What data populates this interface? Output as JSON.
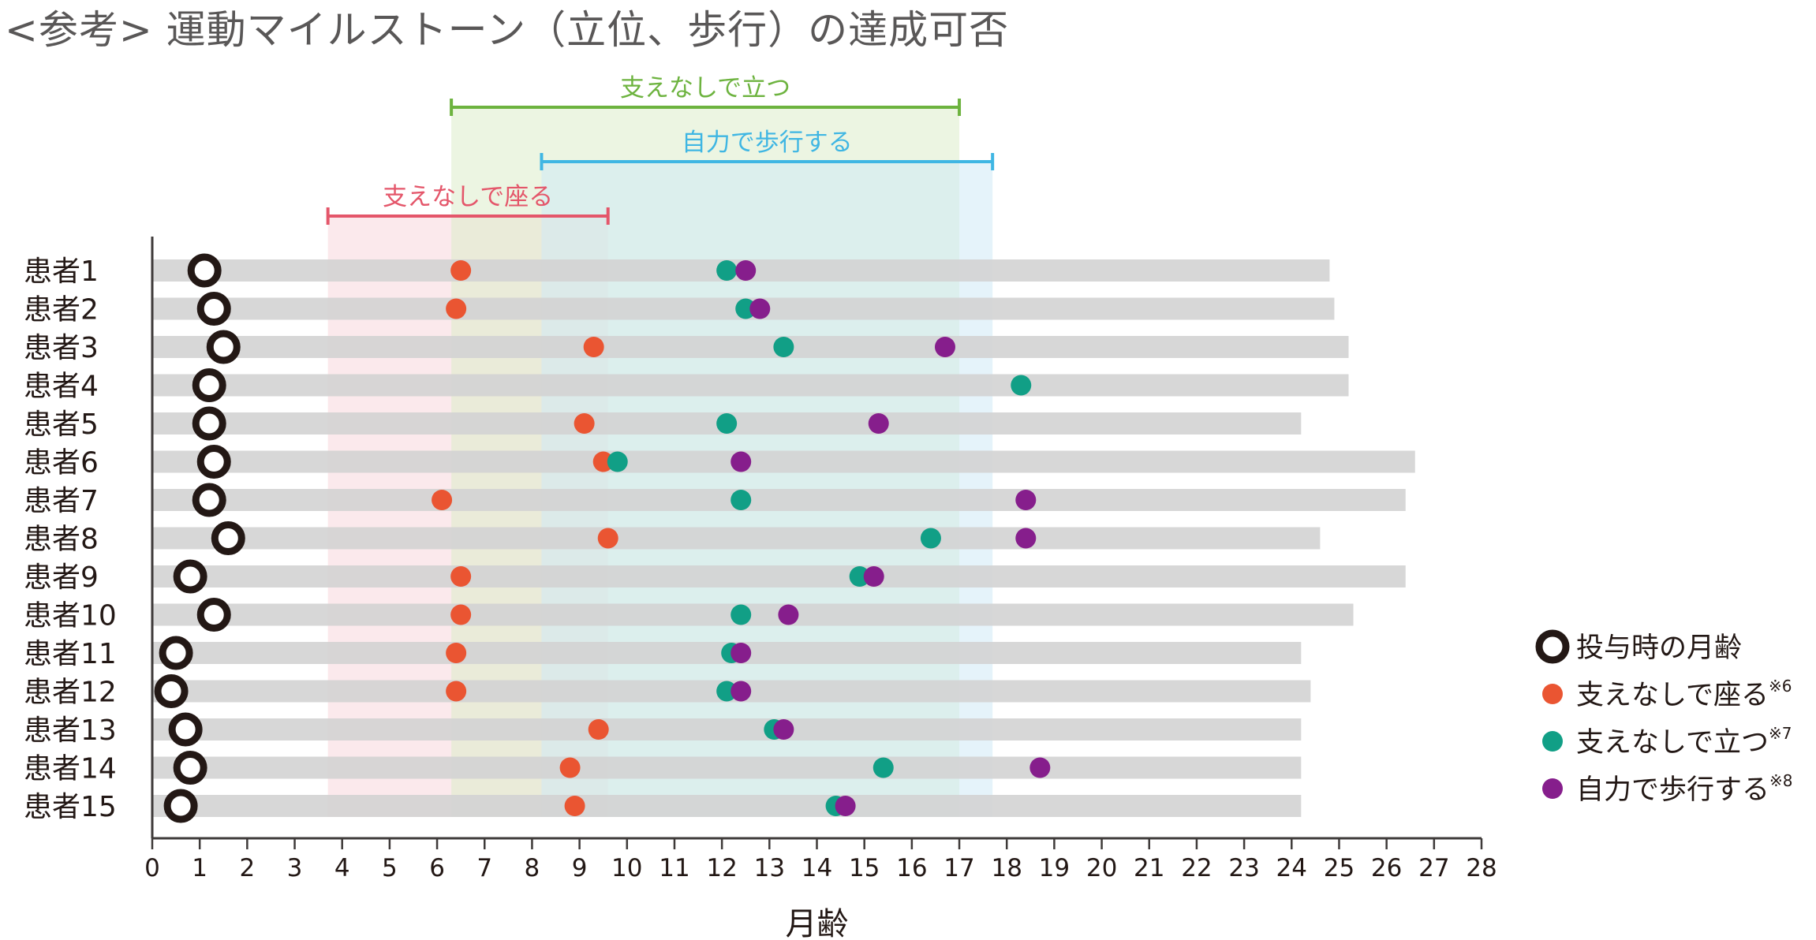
{
  "title": "<参考> 運動マイルストーン（立位、歩行）の達成可否",
  "chart_data": {
    "type": "scatter",
    "xlabel": "月齢",
    "xlim": [
      0,
      28
    ],
    "xticks": [
      0,
      1,
      2,
      3,
      4,
      5,
      6,
      7,
      8,
      9,
      10,
      11,
      12,
      13,
      14,
      15,
      16,
      17,
      18,
      19,
      20,
      21,
      22,
      23,
      24,
      25,
      26,
      27,
      28
    ],
    "patients": [
      {
        "label": "患者1",
        "end": 24.8,
        "dose": 1.1,
        "sit": 6.5,
        "stand": 12.1,
        "walk": 12.5
      },
      {
        "label": "患者2",
        "end": 24.9,
        "dose": 1.3,
        "sit": 6.4,
        "stand": 12.5,
        "walk": 12.8
      },
      {
        "label": "患者3",
        "end": 25.2,
        "dose": 1.5,
        "sit": 9.3,
        "stand": 13.3,
        "walk": 16.7
      },
      {
        "label": "患者4",
        "end": 25.2,
        "dose": 1.2,
        "sit": null,
        "stand": 18.3,
        "walk": null
      },
      {
        "label": "患者5",
        "end": 24.2,
        "dose": 1.2,
        "sit": 9.1,
        "stand": 12.1,
        "walk": 15.3
      },
      {
        "label": "患者6",
        "end": 26.6,
        "dose": 1.3,
        "sit": 9.5,
        "stand": 9.8,
        "walk": 12.4
      },
      {
        "label": "患者7",
        "end": 26.4,
        "dose": 1.2,
        "sit": 6.1,
        "stand": 12.4,
        "walk": 18.4
      },
      {
        "label": "患者8",
        "end": 24.6,
        "dose": 1.6,
        "sit": 9.6,
        "stand": 16.4,
        "walk": 18.4
      },
      {
        "label": "患者9",
        "end": 26.4,
        "dose": 0.8,
        "sit": 6.5,
        "stand": 14.9,
        "walk": 15.2
      },
      {
        "label": "患者10",
        "end": 25.3,
        "dose": 1.3,
        "sit": 6.5,
        "stand": 12.4,
        "walk": 13.4
      },
      {
        "label": "患者11",
        "end": 24.2,
        "dose": 0.5,
        "sit": 6.4,
        "stand": 12.2,
        "walk": 12.4
      },
      {
        "label": "患者12",
        "end": 24.4,
        "dose": 0.4,
        "sit": 6.4,
        "stand": 12.1,
        "walk": 12.4
      },
      {
        "label": "患者13",
        "end": 24.2,
        "dose": 0.7,
        "sit": 9.4,
        "stand": 13.1,
        "walk": 13.3
      },
      {
        "label": "患者14",
        "end": 24.2,
        "dose": 0.8,
        "sit": 8.8,
        "stand": 15.4,
        "walk": 18.7
      },
      {
        "label": "患者15",
        "end": 24.2,
        "dose": 0.6,
        "sit": 8.9,
        "stand": 14.4,
        "walk": 14.6
      }
    ],
    "ranges": [
      {
        "label": "支えなしで座る",
        "from": 3.7,
        "to": 9.6,
        "color": "#e4566a",
        "fill": "#f8d7dc"
      },
      {
        "label": "支えなしで立つ",
        "from": 6.3,
        "to": 17.0,
        "color": "#6db33f",
        "fill": "#dcedcb"
      },
      {
        "label": "自力で歩行する",
        "from": 8.2,
        "to": 17.7,
        "color": "#3fb6e3",
        "fill": "#cfeaf5"
      }
    ],
    "legend": [
      {
        "key": "dose",
        "label": "投与時の月齢"
      },
      {
        "key": "sit",
        "label": "支えなしで座る",
        "note": "※6"
      },
      {
        "key": "stand",
        "label": "支えなしで立つ",
        "note": "※7"
      },
      {
        "key": "walk",
        "label": "自力で歩行する",
        "note": "※8"
      }
    ],
    "legend_position": "right",
    "colors": {
      "dose_ring": "#231815",
      "sit": "#ea5532",
      "stand": "#119f86",
      "walk": "#861e8c",
      "bar": "#d3d3d3",
      "axis": "#3e3a39"
    }
  }
}
